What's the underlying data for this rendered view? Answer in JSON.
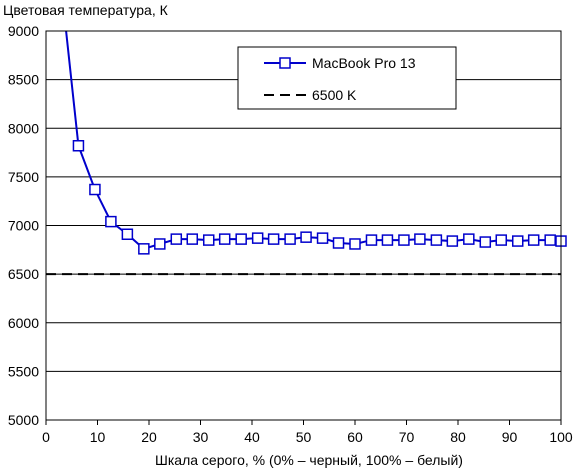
{
  "chart_data": {
    "type": "line",
    "ylabel": "Цветовая температура, К",
    "xlabel": "Шкала серого, % (0% – черный, 100% – белый)",
    "xlim": [
      0,
      100
    ],
    "ylim": [
      5000,
      9000
    ],
    "x_ticks": [
      0,
      10,
      20,
      30,
      40,
      50,
      60,
      70,
      80,
      90,
      100
    ],
    "y_ticks": [
      5000,
      5500,
      6000,
      6500,
      7000,
      7500,
      8000,
      8500,
      9000
    ],
    "grid": "horizontal",
    "legend_placement": "top-right",
    "series": [
      {
        "name": "MacBook Pro 13",
        "color": "#0000cc",
        "marker": "square",
        "x": [
          3.9,
          6.3,
          9.5,
          12.6,
          15.8,
          19.0,
          22.1,
          25.3,
          28.4,
          31.6,
          34.7,
          37.9,
          41.1,
          44.2,
          47.4,
          50.5,
          53.7,
          56.8,
          60.0,
          63.2,
          66.3,
          69.5,
          72.6,
          75.8,
          78.9,
          82.1,
          85.3,
          88.4,
          91.6,
          94.7,
          97.9,
          100
        ],
        "y": [
          9000,
          7820,
          7370,
          7040,
          6910,
          6760,
          6810,
          6860,
          6860,
          6850,
          6860,
          6860,
          6870,
          6860,
          6860,
          6880,
          6870,
          6820,
          6810,
          6850,
          6850,
          6850,
          6860,
          6850,
          6840,
          6860,
          6830,
          6850,
          6840,
          6850,
          6850,
          6840
        ]
      },
      {
        "name": "6500 K",
        "color": "#000000",
        "style": "dashed",
        "x": [
          0,
          100
        ],
        "y": [
          6500,
          6500
        ]
      }
    ]
  }
}
